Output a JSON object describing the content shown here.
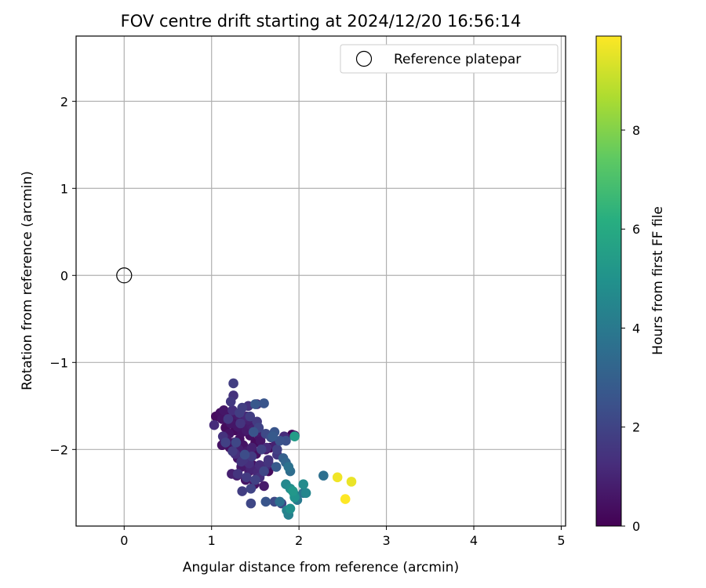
{
  "chart_data": {
    "type": "scatter",
    "title": "FOV centre drift starting at 2024/12/20 16:56:14",
    "xlabel": "Angular distance from reference (arcmin)",
    "ylabel": "Rotation from reference (arcmin)",
    "xlim": [
      -0.55,
      5.05
    ],
    "ylim": [
      -2.88,
      2.75
    ],
    "xticks": [
      0,
      1,
      2,
      3,
      4,
      5
    ],
    "xtick_labels": [
      "0",
      "1",
      "2",
      "3",
      "4",
      "5"
    ],
    "yticks": [
      -2,
      -1,
      0,
      1,
      2
    ],
    "ytick_labels": [
      "−2",
      "−1",
      "0",
      "1",
      "2"
    ],
    "grid": true,
    "legend": {
      "placement": "top-right",
      "entries": [
        "Reference platepar"
      ]
    },
    "reference_point": {
      "x": 0,
      "y": 0,
      "marker": "open-circle"
    },
    "colorbar": {
      "label": "Hours from first FF file",
      "range": [
        0,
        9.9
      ],
      "ticks": [
        0,
        2,
        4,
        6,
        8
      ],
      "tick_labels": [
        "0",
        "2",
        "4",
        "6",
        "8"
      ],
      "colormap": "viridis"
    },
    "series": [
      {
        "x": [
          1.05,
          1.1,
          1.12,
          1.14,
          1.15,
          1.16,
          1.18,
          1.2,
          1.22,
          1.25,
          1.27,
          1.28,
          1.3,
          1.32,
          1.33,
          1.35,
          1.37,
          1.4,
          1.42,
          1.44,
          1.45,
          1.48,
          1.5,
          1.52,
          1.55,
          1.12,
          1.17,
          1.21,
          1.26,
          1.31,
          1.36,
          1.41,
          1.46,
          1.51,
          1.56,
          1.3,
          1.34,
          1.38,
          1.43,
          1.47,
          1.53,
          1.58,
          1.62,
          1.65,
          1.23,
          1.29,
          1.39,
          1.49,
          1.6,
          1.67,
          1.92,
          1.03,
          1.13,
          1.19,
          1.24,
          1.33,
          1.44,
          1.54,
          1.27,
          1.36,
          1.46,
          1.57,
          1.22,
          1.32,
          1.42,
          1.52,
          1.62,
          1.68,
          1.72,
          1.78,
          1.3,
          1.4,
          1.5,
          1.6,
          1.25,
          1.35,
          1.48,
          1.7,
          1.82,
          1.28,
          1.38,
          1.45,
          1.55,
          1.65,
          1.75,
          1.35,
          1.45,
          1.55,
          1.65,
          1.75,
          1.85,
          1.25,
          1.4,
          1.52,
          1.63,
          1.74,
          1.16,
          1.24,
          1.34,
          1.43,
          1.53,
          1.63,
          1.73,
          1.83,
          1.5,
          1.6,
          1.72,
          1.85,
          1.95,
          1.9,
          1.8,
          1.45,
          1.88,
          1.95,
          2.05,
          1.98,
          1.86,
          1.78,
          1.62,
          1.85,
          1.9,
          1.95,
          2.05,
          2.08,
          1.93,
          1.9,
          1.88,
          2.28,
          1.95,
          2.44,
          2.6,
          2.53
        ],
        "y": [
          -1.62,
          -1.58,
          -1.65,
          -1.55,
          -1.9,
          -1.75,
          -1.6,
          -1.82,
          -1.7,
          -1.6,
          -1.78,
          -1.68,
          -1.74,
          -1.88,
          -1.64,
          -1.8,
          -1.7,
          -1.78,
          -1.66,
          -1.84,
          -1.72,
          -1.76,
          -1.92,
          -1.8,
          -1.86,
          -1.95,
          -1.88,
          -1.98,
          -1.92,
          -2.0,
          -1.95,
          -2.02,
          -1.98,
          -2.05,
          -1.9,
          -2.1,
          -2.2,
          -2.15,
          -2.25,
          -2.18,
          -2.3,
          -2.22,
          -2.0,
          -2.25,
          -2.28,
          -2.3,
          -2.35,
          -2.4,
          -2.42,
          -1.98,
          -1.83,
          -1.72,
          -1.85,
          -1.65,
          -1.55,
          -1.7,
          -1.62,
          -1.75,
          -2.05,
          -2.12,
          -2.08,
          -2.0,
          -1.45,
          -1.58,
          -1.5,
          -1.68,
          -1.82,
          -1.86,
          -1.8,
          -1.9,
          -2.28,
          -2.32,
          -2.35,
          -2.25,
          -1.38,
          -1.52,
          -1.8,
          -1.85,
          -2.1,
          -1.92,
          -2.06,
          -2.22,
          -2.18,
          -2.12,
          -2.06,
          -2.48,
          -2.45,
          -2.32,
          -2.15,
          -2.0,
          -1.9,
          -1.24,
          -1.62,
          -1.48,
          -1.98,
          -2.2,
          -1.92,
          -2.02,
          -2.14,
          -2.16,
          -2.26,
          -2.18,
          -1.95,
          -1.85,
          -1.48,
          -1.47,
          -2.6,
          -2.15,
          -1.84,
          -2.25,
          -2.62,
          -2.62,
          -2.2,
          -2.52,
          -2.5,
          -2.58,
          -2.7,
          -2.6,
          -2.6,
          -2.4,
          -2.45,
          -2.55,
          -2.4,
          -2.5,
          -2.48,
          -2.68,
          -2.75,
          -2.3,
          -1.85,
          -2.32,
          -2.37,
          -2.57
        ],
        "hours": [
          0.3,
          0.4,
          0.5,
          0.6,
          0.2,
          0.3,
          0.4,
          0.5,
          0.6,
          0.7,
          0.3,
          0.5,
          0.6,
          0.4,
          0.8,
          0.5,
          0.6,
          0.7,
          0.9,
          0.4,
          0.8,
          0.9,
          0.3,
          0.7,
          0.6,
          0.5,
          0.7,
          0.4,
          0.6,
          0.8,
          0.5,
          0.7,
          0.9,
          0.4,
          0.6,
          0.5,
          0.7,
          0.6,
          0.8,
          0.4,
          0.7,
          0.5,
          0.6,
          0.3,
          0.9,
          0.8,
          0.6,
          0.5,
          0.7,
          0.2,
          0.1,
          1.2,
          1.4,
          1.6,
          1.3,
          1.5,
          1.8,
          2.0,
          1.3,
          1.5,
          1.7,
          1.9,
          1.6,
          1.8,
          1.4,
          1.7,
          2.2,
          2.4,
          2.6,
          2.5,
          1.5,
          1.7,
          1.9,
          2.1,
          1.4,
          1.8,
          2.6,
          2.8,
          3.0,
          2.1,
          2.3,
          1.0,
          1.2,
          1.4,
          1.6,
          1.8,
          2.0,
          1.3,
          1.5,
          1.9,
          2.4,
          1.8,
          1.1,
          1.3,
          1.2,
          2.8,
          1.9,
          1.7,
          1.5,
          1.3,
          1.1,
          1.0,
          0.9,
          1.2,
          2.7,
          2.6,
          2.2,
          3.2,
          0.5,
          3.5,
          2.0,
          2.1,
          3.7,
          4.2,
          3.8,
          4.0,
          4.4,
          3.6,
          2.6,
          4.6,
          4.8,
          5.0,
          4.7,
          4.5,
          5.2,
          4.9,
          4.3,
          3.6,
          5.4,
          9.7,
          9.6,
          9.9
        ]
      }
    ]
  }
}
